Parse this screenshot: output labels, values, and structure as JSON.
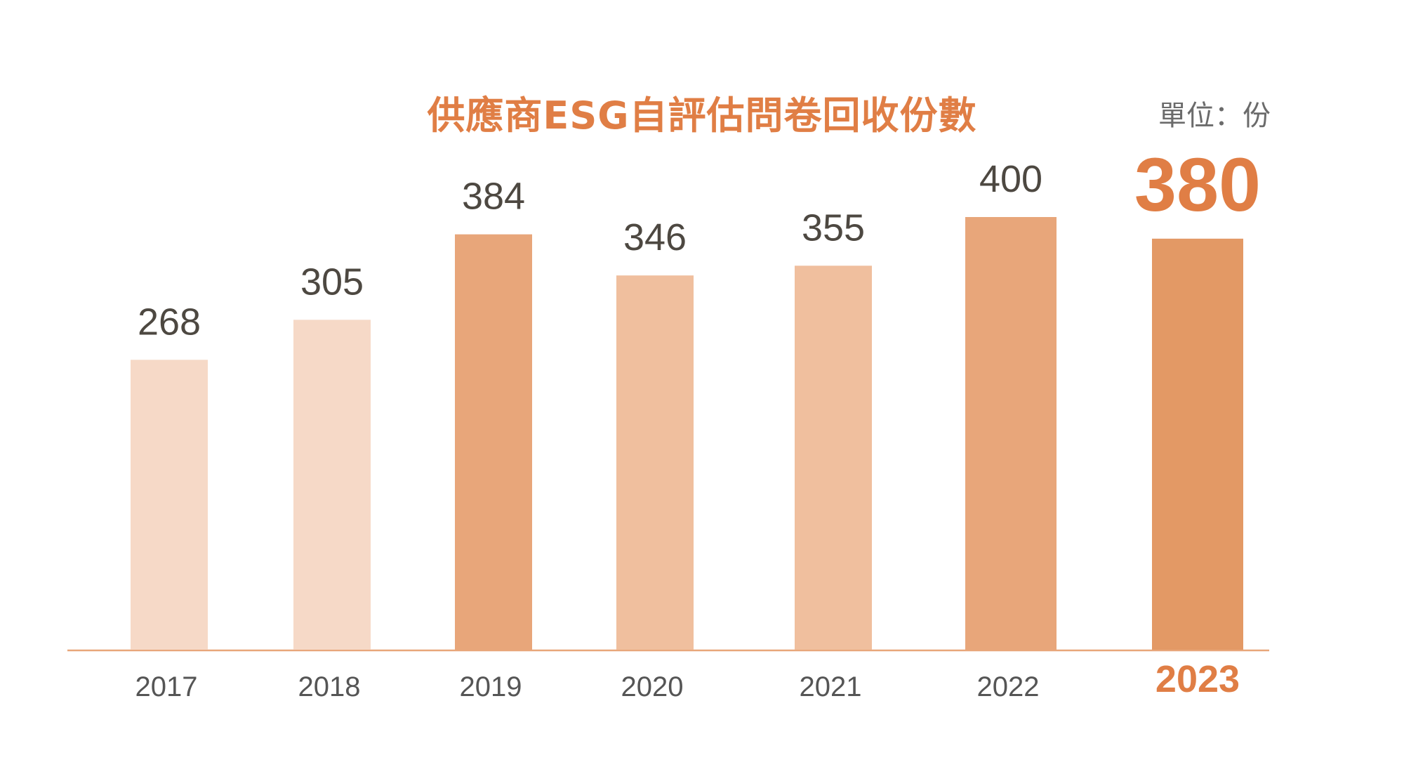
{
  "chart_data": {
    "type": "bar",
    "title": "供應商ESG自評估問卷回收份數",
    "unit": "單位：份",
    "categories": [
      "2017",
      "2018",
      "2019",
      "2020",
      "2021",
      "2022",
      "2023"
    ],
    "values": [
      268,
      305,
      384,
      346,
      355,
      400,
      380
    ],
    "highlight_category": "2023",
    "ylim": [
      0,
      400
    ],
    "grid": false,
    "legend": "none",
    "bar_colors": [
      "#F6D9C7",
      "#F6D9C7",
      "#E8A67A",
      "#F0BF9E",
      "#F0BF9E",
      "#E8A67A",
      "#E39965"
    ],
    "colors": {
      "title": "#E07E45",
      "highlight_text": "#E07E45",
      "label_text": "#4d4841",
      "axis_text": "#555555",
      "axis_line": "#E8A67A"
    }
  }
}
